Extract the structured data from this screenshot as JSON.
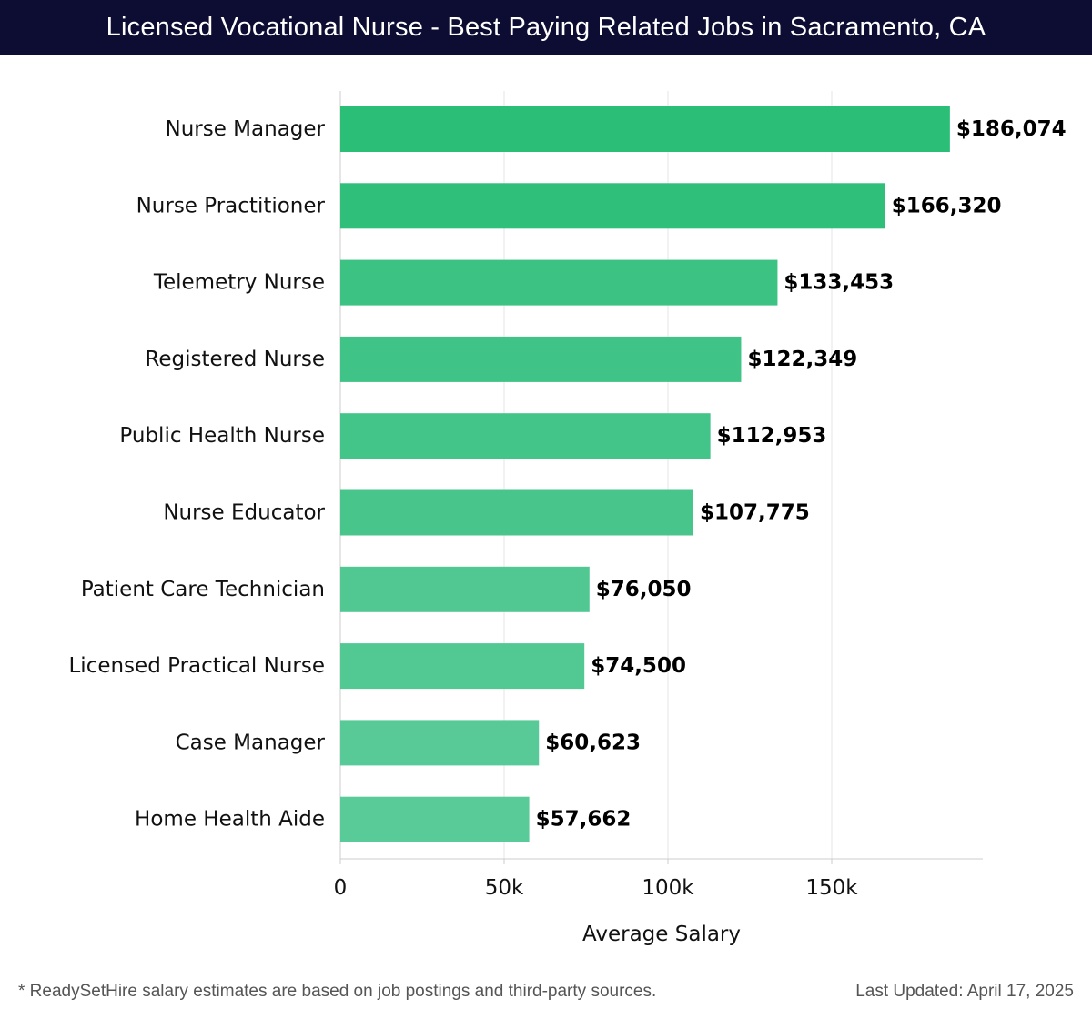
{
  "header": {
    "title": "Licensed Vocational Nurse - Best Paying Related Jobs in Sacramento, CA"
  },
  "chart_data": {
    "type": "bar",
    "orientation": "horizontal",
    "title": "Licensed Vocational Nurse - Best Paying Related Jobs in Sacramento, CA",
    "xlabel": "Average Salary",
    "ylabel": "",
    "xlim": [
      0,
      196000
    ],
    "x_ticks": [
      0,
      50000,
      100000,
      150000
    ],
    "x_tick_labels": [
      "0",
      "50k",
      "100k",
      "150k"
    ],
    "grid": "vertical",
    "categories": [
      "Nurse Manager",
      "Nurse Practitioner",
      "Telemetry Nurse",
      "Registered Nurse",
      "Public Health Nurse",
      "Nurse Educator",
      "Patient Care Technician",
      "Licensed Practical Nurse",
      "Case Manager",
      "Home Health Aide"
    ],
    "values": [
      186074,
      166320,
      133453,
      122349,
      112953,
      107775,
      76050,
      74500,
      60623,
      57662
    ],
    "value_labels": [
      "$186,074",
      "$166,320",
      "$133,453",
      "$122,349",
      "$112,953",
      "$107,775",
      "$76,050",
      "$74,500",
      "$60,623",
      "$57,662"
    ],
    "bar_colors": [
      "#2bbe77",
      "#2fbf7a",
      "#3cc283",
      "#40c386",
      "#43c488",
      "#47c58b",
      "#51c892",
      "#52c893",
      "#57ca97",
      "#59cb98"
    ],
    "grid_color": "#e6e6e6",
    "axis_color": "#cccccc"
  },
  "footer": {
    "note": "* ReadySetHire salary estimates are based on job postings and third-party sources.",
    "updated": "Last Updated: April 17, 2025"
  }
}
